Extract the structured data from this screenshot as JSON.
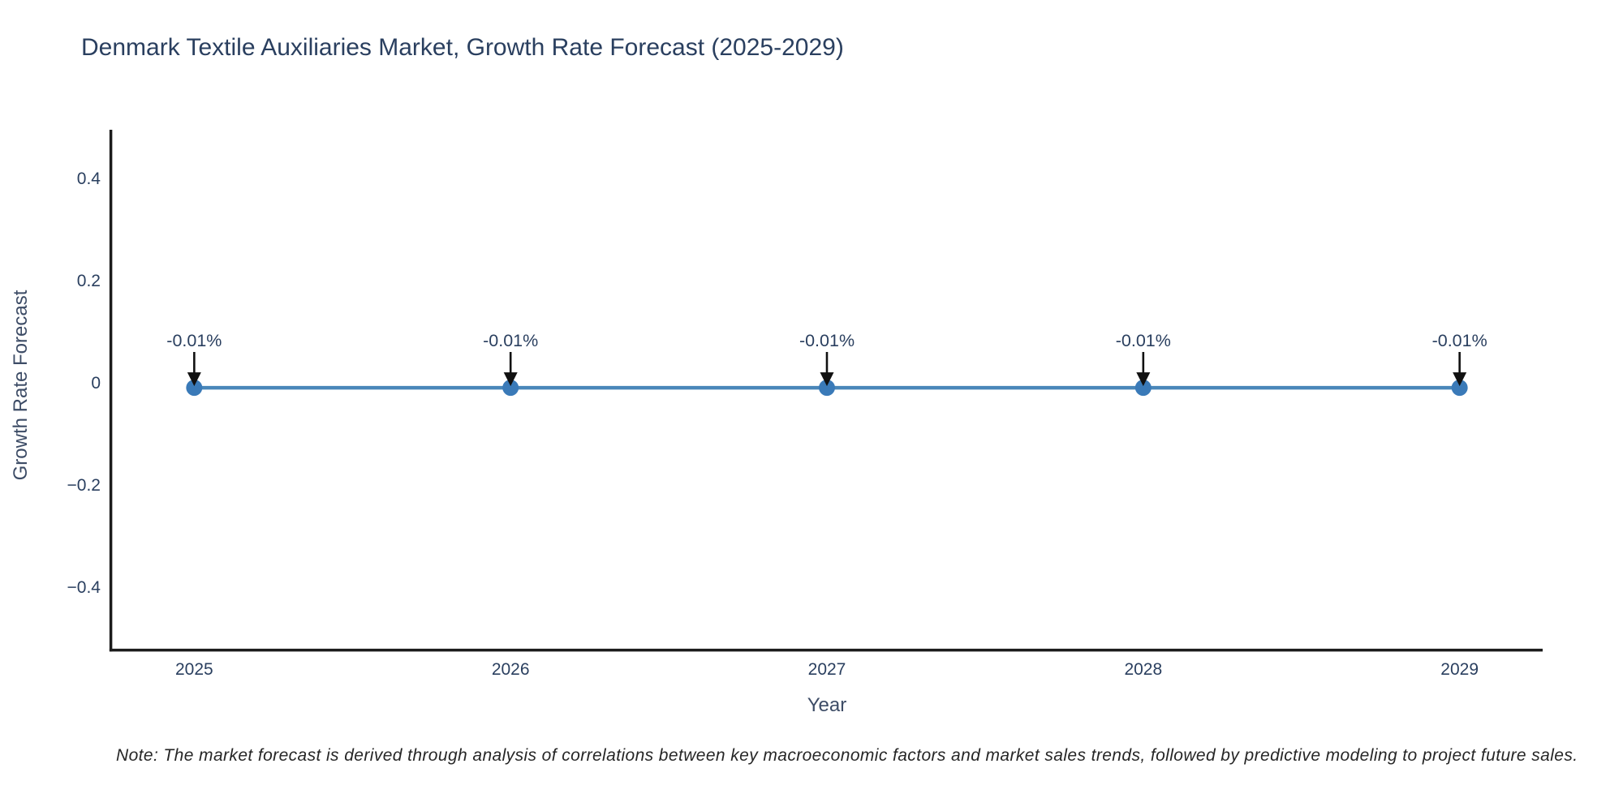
{
  "title": "Denmark Textile Auxiliaries Market, Growth Rate Forecast (2025-2029)",
  "note": "Note: The market forecast is derived through analysis of correlations between key macroeconomic factors and market sales trends, followed by predictive modeling to project future sales.",
  "chart_data": {
    "type": "line",
    "x": [
      2025,
      2026,
      2027,
      2028,
      2029
    ],
    "series": [
      {
        "name": "Growth Rate Forecast",
        "values": [
          -0.01,
          -0.01,
          -0.01,
          -0.01,
          -0.01
        ]
      }
    ],
    "annotations": [
      "-0.01%",
      "-0.01%",
      "-0.01%",
      "-0.01%",
      "-0.01%"
    ],
    "title": "Denmark Textile Auxiliaries Market, Growth Rate Forecast (2025-2029)",
    "xlabel": "Year",
    "ylabel": "Growth Rate Forecast",
    "xtick_labels": [
      "2025",
      "2026",
      "2027",
      "2028",
      "2029"
    ],
    "yticks": [
      0.4,
      0.2,
      0,
      -0.2,
      -0.4
    ],
    "ytick_labels": [
      "0.4",
      "0.2",
      "0",
      "−0.2",
      "−0.4"
    ],
    "xlim": [
      2024.74,
      2029.26
    ],
    "ylim": [
      -0.521,
      0.495
    ],
    "grid": false,
    "legend": "none",
    "colors": {
      "line": "#4a87b9",
      "marker": "#3a7ab8",
      "axis": "#1c1c1c",
      "tick_text": "#2a3f5f",
      "annotation_text": "#2a3f5f",
      "arrow": "#111111"
    }
  }
}
